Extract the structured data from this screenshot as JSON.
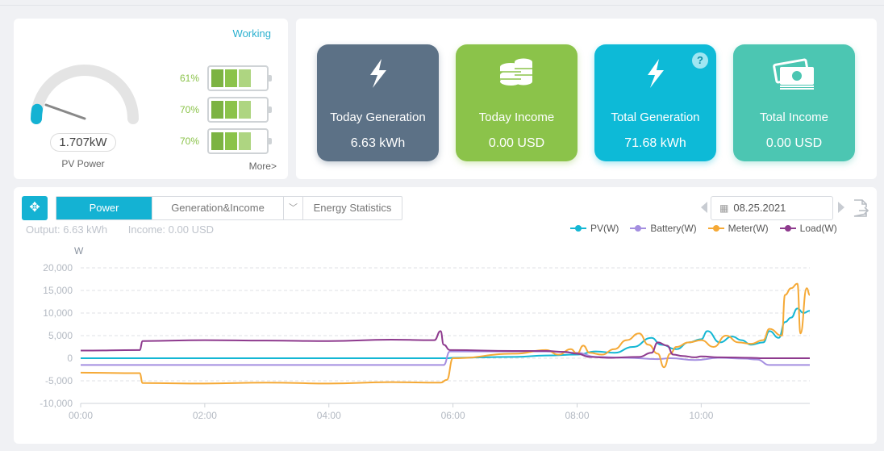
{
  "pv_panel": {
    "status": "Working",
    "pv_power_value": "1.707kW",
    "pv_power_label": "PV Power",
    "gauge_fraction": 0.06,
    "batteries": [
      {
        "percent": "61%"
      },
      {
        "percent": "70%"
      },
      {
        "percent": "70%"
      }
    ],
    "more_label": "More>"
  },
  "cards": [
    {
      "title": "Today Generation",
      "value": "6.63 kWh",
      "icon": "lightning-icon",
      "color": "#5c7186"
    },
    {
      "title": "Today Income",
      "value": "0.00 USD",
      "icon": "coins-icon",
      "color": "#8bc34a"
    },
    {
      "title": "Total Generation",
      "value": "71.68 kWh",
      "icon": "lightning-icon",
      "color": "#0dbad7",
      "help": "?"
    },
    {
      "title": "Total Income",
      "value": "0.00 USD",
      "icon": "cash-icon",
      "color": "#4cc6b2"
    }
  ],
  "toolbar": {
    "tabs": [
      "Power",
      "Generation&Income",
      "Energy Statistics"
    ],
    "active_tab": "Power",
    "summary_output": "Output:  6.63 kWh",
    "summary_income": "Income:  0.00 USD",
    "date": "08.25.2021"
  },
  "chart_data": {
    "type": "line",
    "ylabel": "W",
    "ylim": [
      -10000,
      20000
    ],
    "yticks": [
      -10000,
      -5000,
      0,
      5000,
      10000,
      15000,
      20000
    ],
    "ytick_labels": [
      "-10,000",
      "-5,000",
      "0",
      "5,000",
      "10,000",
      "15,000",
      "20,000"
    ],
    "xlim": [
      0,
      11.75
    ],
    "xticks": [
      0,
      2,
      4,
      6,
      8,
      10
    ],
    "xtick_labels": [
      "00:00",
      "02:00",
      "04:00",
      "06:00",
      "08:00",
      "10:00"
    ],
    "grid": true,
    "legend_position": "top-right",
    "series": [
      {
        "name": "PV(W)",
        "color": "#14b7d4",
        "points": [
          [
            0,
            0
          ],
          [
            5.9,
            0
          ],
          [
            6.0,
            100
          ],
          [
            7.0,
            300
          ],
          [
            7.5,
            600
          ],
          [
            8.0,
            800
          ],
          [
            8.3,
            1500
          ],
          [
            8.6,
            1200
          ],
          [
            8.9,
            2500
          ],
          [
            9.2,
            4500
          ],
          [
            9.35,
            3000
          ],
          [
            9.6,
            2000
          ],
          [
            9.8,
            3500
          ],
          [
            10.0,
            4200
          ],
          [
            10.1,
            6000
          ],
          [
            10.3,
            3500
          ],
          [
            10.5,
            4800
          ],
          [
            10.65,
            4000
          ],
          [
            10.8,
            3000
          ],
          [
            11.0,
            3500
          ],
          [
            11.1,
            6000
          ],
          [
            11.25,
            4500
          ],
          [
            11.35,
            8000
          ],
          [
            11.45,
            9000
          ],
          [
            11.55,
            11000
          ],
          [
            11.65,
            10000
          ],
          [
            11.75,
            10500
          ]
        ]
      },
      {
        "name": "Battery(W)",
        "color": "#a48ee0",
        "points": [
          [
            0,
            -1500
          ],
          [
            5.85,
            -1500
          ],
          [
            5.95,
            1500
          ],
          [
            7.5,
            1500
          ],
          [
            8.0,
            1200
          ],
          [
            8.3,
            300
          ],
          [
            8.8,
            100
          ],
          [
            9.3,
            -200
          ],
          [
            9.5,
            0
          ],
          [
            9.9,
            -400
          ],
          [
            10.3,
            100
          ],
          [
            10.7,
            -100
          ],
          [
            10.9,
            -300
          ],
          [
            11.1,
            -1500
          ],
          [
            11.75,
            -1500
          ]
        ]
      },
      {
        "name": "Meter(W)",
        "color": "#f5a936",
        "points": [
          [
            0,
            -3200
          ],
          [
            0.95,
            -3300
          ],
          [
            1.0,
            -5500
          ],
          [
            2.0,
            -5600
          ],
          [
            3.0,
            -5400
          ],
          [
            4.0,
            -5600
          ],
          [
            5.0,
            -5300
          ],
          [
            5.8,
            -5400
          ],
          [
            5.9,
            -4800
          ],
          [
            6.0,
            0
          ],
          [
            7.0,
            1000
          ],
          [
            7.5,
            1800
          ],
          [
            7.7,
            800
          ],
          [
            7.9,
            2000
          ],
          [
            8.0,
            1000
          ],
          [
            8.1,
            2800
          ],
          [
            8.2,
            1200
          ],
          [
            8.4,
            800
          ],
          [
            8.6,
            2000
          ],
          [
            8.8,
            4000
          ],
          [
            9.0,
            5500
          ],
          [
            9.15,
            3000
          ],
          [
            9.3,
            1000
          ],
          [
            9.4,
            -2000
          ],
          [
            9.5,
            1000
          ],
          [
            9.6,
            2500
          ],
          [
            9.8,
            3500
          ],
          [
            10.0,
            4000
          ],
          [
            10.2,
            2500
          ],
          [
            10.4,
            5000
          ],
          [
            10.6,
            3500
          ],
          [
            10.8,
            3200
          ],
          [
            11.0,
            4000
          ],
          [
            11.1,
            6500
          ],
          [
            11.3,
            5000
          ],
          [
            11.35,
            14000
          ],
          [
            11.45,
            15500
          ],
          [
            11.55,
            16500
          ],
          [
            11.6,
            5500
          ],
          [
            11.7,
            15500
          ],
          [
            11.75,
            14000
          ]
        ]
      },
      {
        "name": "Load(W)",
        "color": "#8e3a8e",
        "points": [
          [
            0,
            1700
          ],
          [
            0.95,
            1800
          ],
          [
            1.0,
            3800
          ],
          [
            2.0,
            4000
          ],
          [
            3.0,
            3900
          ],
          [
            4.0,
            3800
          ],
          [
            5.0,
            4100
          ],
          [
            5.7,
            4000
          ],
          [
            5.8,
            6000
          ],
          [
            5.85,
            3000
          ],
          [
            5.95,
            1800
          ],
          [
            7.0,
            1600
          ],
          [
            7.5,
            1600
          ],
          [
            7.8,
            1400
          ],
          [
            8.0,
            1000
          ],
          [
            8.2,
            300
          ],
          [
            8.5,
            100
          ],
          [
            9.0,
            300
          ],
          [
            9.2,
            1200
          ],
          [
            9.3,
            3500
          ],
          [
            9.45,
            2800
          ],
          [
            9.55,
            800
          ],
          [
            9.7,
            500
          ],
          [
            9.9,
            200
          ],
          [
            10.0,
            400
          ],
          [
            10.3,
            200
          ],
          [
            10.8,
            100
          ],
          [
            11.0,
            0
          ],
          [
            11.75,
            0
          ]
        ]
      }
    ]
  }
}
